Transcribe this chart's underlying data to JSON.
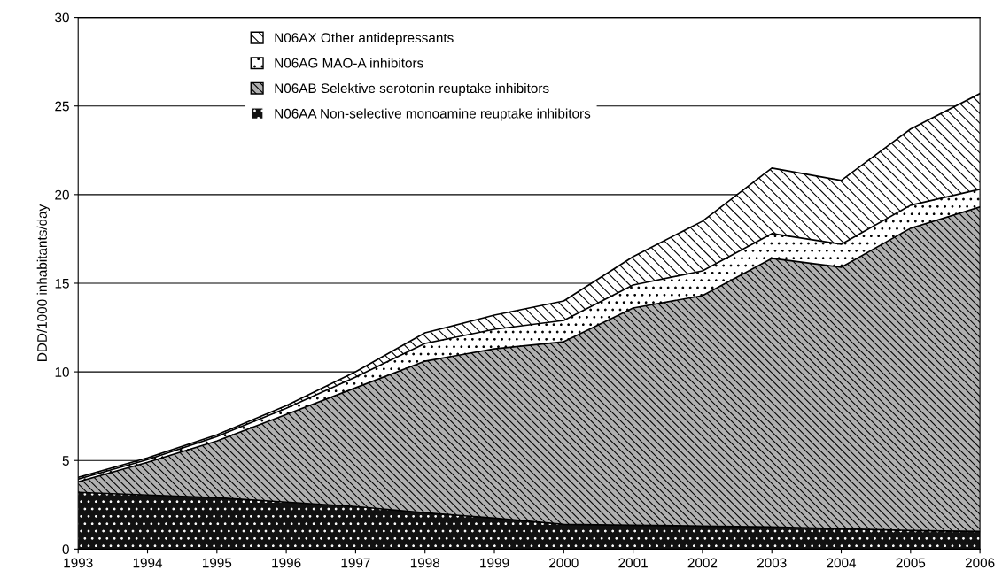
{
  "chart_data": {
    "type": "area",
    "stacked": true,
    "ylabel": "DDD/1000 inhabitants/day",
    "x": [
      1993,
      1994,
      1995,
      1996,
      1997,
      1998,
      1999,
      2000,
      2001,
      2002,
      2003,
      2004,
      2005,
      2006
    ],
    "series": [
      {
        "name": "N06AA Non-selective monoamine reuptake inhibitors",
        "color": "#111111",
        "values": [
          3.2,
          3.05,
          2.9,
          2.65,
          2.4,
          2.05,
          1.75,
          1.4,
          1.35,
          1.3,
          1.25,
          1.15,
          1.05,
          1.0
        ]
      },
      {
        "name": "N06AB Selektive serotonin reuptake inhibitors",
        "color": "#b0b0b0",
        "values": [
          0.6,
          1.85,
          3.2,
          4.95,
          6.7,
          8.55,
          9.55,
          10.3,
          12.25,
          13.0,
          15.15,
          14.75,
          17.05,
          18.3
        ]
      },
      {
        "name": "N06AG MAO-A inhibitors",
        "color": "#ffffff",
        "values": [
          0.15,
          0.15,
          0.25,
          0.35,
          0.6,
          1.0,
          1.1,
          1.2,
          1.3,
          1.4,
          1.4,
          1.3,
          1.3,
          1.0
        ]
      },
      {
        "name": "N06AX Other antidepressants",
        "color": "#ffffff",
        "values": [
          0.1,
          0.1,
          0.1,
          0.15,
          0.3,
          0.6,
          0.8,
          1.1,
          1.6,
          2.8,
          3.7,
          3.6,
          4.3,
          5.4
        ]
      }
    ],
    "xlim": [
      1993,
      2006
    ],
    "xticks": [
      1993,
      1994,
      1995,
      1996,
      1997,
      1998,
      1999,
      2000,
      2001,
      2002,
      2003,
      2004,
      2005,
      2006
    ],
    "ylim": [
      0,
      30
    ],
    "yticks": [
      0,
      5,
      10,
      15,
      20,
      25,
      30
    ],
    "grid": "y",
    "legend": "top"
  }
}
